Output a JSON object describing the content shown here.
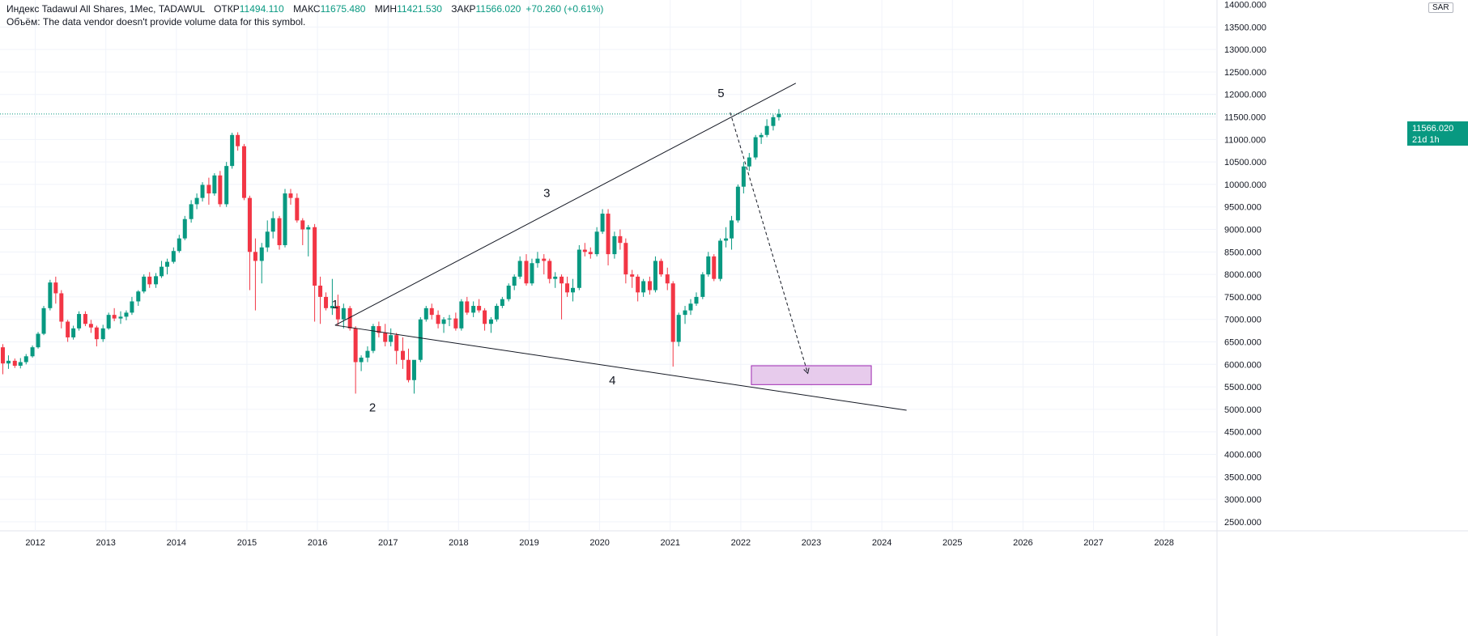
{
  "legend": {
    "symbol": "Индекс Tadawul All Shares, 1Мес, TADAWUL",
    "open_label": "ОТКР",
    "open": "11494.110",
    "high_label": "МАКС",
    "high": "11675.480",
    "low_label": "МИН",
    "low": "11421.530",
    "close_label": "ЗАКР",
    "close": "11566.020",
    "change": "+70.260 (+0.61%)",
    "volume_note": "Объём: The data vendor doesn't provide volume data for this symbol."
  },
  "price_axis": {
    "currency": "SAR",
    "current_price": "11566.020",
    "current_timer": "21d 1h",
    "top_partial_label": "14000.000"
  },
  "colors": {
    "up": "#089981",
    "down": "#f23645",
    "grid": "#f0f3fa",
    "text": "#131722",
    "line": "#131722",
    "target_fill": "#e1bee7",
    "target_border": "#9c27b0"
  },
  "chart_data": {
    "type": "candlestick",
    "title": "Индекс Tadawul All Shares, 1Мес, TADAWUL",
    "xlabel": "",
    "ylabel": "",
    "y_ticks": [
      2500,
      3000,
      3500,
      4000,
      4500,
      5000,
      5500,
      6000,
      6500,
      7000,
      7500,
      8000,
      8500,
      9000,
      9500,
      10000,
      10500,
      11000,
      11500,
      12000,
      12500,
      13000,
      13500
    ],
    "ylim": [
      2300,
      14100
    ],
    "x_ticks": [
      "2012",
      "2013",
      "2014",
      "2015",
      "2016",
      "2017",
      "2018",
      "2019",
      "2020",
      "2021",
      "2022",
      "2023",
      "2024",
      "2025",
      "2026",
      "2027",
      "2028"
    ],
    "x_start": 2011.5,
    "x_end": 2028.75,
    "candles": [
      {
        "t": 2011.54,
        "o": 6380,
        "h": 6450,
        "l": 5780,
        "c": 6020
      },
      {
        "t": 2011.62,
        "o": 6020,
        "h": 6200,
        "l": 5900,
        "c": 6080
      },
      {
        "t": 2011.71,
        "o": 6080,
        "h": 6130,
        "l": 5920,
        "c": 5970
      },
      {
        "t": 2011.79,
        "o": 5970,
        "h": 6140,
        "l": 5910,
        "c": 6050
      },
      {
        "t": 2011.87,
        "o": 6050,
        "h": 6230,
        "l": 6000,
        "c": 6180
      },
      {
        "t": 2011.96,
        "o": 6180,
        "h": 6420,
        "l": 6150,
        "c": 6380
      },
      {
        "t": 2012.04,
        "o": 6380,
        "h": 6720,
        "l": 6350,
        "c": 6680
      },
      {
        "t": 2012.12,
        "o": 6680,
        "h": 7300,
        "l": 6650,
        "c": 7250
      },
      {
        "t": 2012.21,
        "o": 7250,
        "h": 7880,
        "l": 7200,
        "c": 7820
      },
      {
        "t": 2012.29,
        "o": 7820,
        "h": 7950,
        "l": 7350,
        "c": 7580
      },
      {
        "t": 2012.37,
        "o": 7580,
        "h": 7650,
        "l": 6800,
        "c": 6950
      },
      {
        "t": 2012.46,
        "o": 6950,
        "h": 6990,
        "l": 6500,
        "c": 6600
      },
      {
        "t": 2012.54,
        "o": 6600,
        "h": 6860,
        "l": 6550,
        "c": 6800
      },
      {
        "t": 2012.62,
        "o": 6800,
        "h": 7180,
        "l": 6750,
        "c": 7120
      },
      {
        "t": 2012.71,
        "o": 7120,
        "h": 7180,
        "l": 6850,
        "c": 6900
      },
      {
        "t": 2012.79,
        "o": 6900,
        "h": 6990,
        "l": 6700,
        "c": 6820
      },
      {
        "t": 2012.87,
        "o": 6820,
        "h": 6860,
        "l": 6400,
        "c": 6560
      },
      {
        "t": 2012.96,
        "o": 6560,
        "h": 6880,
        "l": 6500,
        "c": 6800
      },
      {
        "t": 2013.04,
        "o": 6800,
        "h": 7150,
        "l": 6770,
        "c": 7100
      },
      {
        "t": 2013.12,
        "o": 7100,
        "h": 7250,
        "l": 6960,
        "c": 7020
      },
      {
        "t": 2013.21,
        "o": 7020,
        "h": 7180,
        "l": 6900,
        "c": 7060
      },
      {
        "t": 2013.29,
        "o": 7060,
        "h": 7200,
        "l": 6980,
        "c": 7150
      },
      {
        "t": 2013.37,
        "o": 7150,
        "h": 7500,
        "l": 7100,
        "c": 7400
      },
      {
        "t": 2013.46,
        "o": 7400,
        "h": 7650,
        "l": 7300,
        "c": 7620
      },
      {
        "t": 2013.54,
        "o": 7620,
        "h": 8000,
        "l": 7580,
        "c": 7950
      },
      {
        "t": 2013.62,
        "o": 7950,
        "h": 8050,
        "l": 7700,
        "c": 7780
      },
      {
        "t": 2013.71,
        "o": 7780,
        "h": 8030,
        "l": 7700,
        "c": 7960
      },
      {
        "t": 2013.79,
        "o": 7960,
        "h": 8300,
        "l": 7920,
        "c": 8170
      },
      {
        "t": 2013.87,
        "o": 8170,
        "h": 8350,
        "l": 8000,
        "c": 8280
      },
      {
        "t": 2013.96,
        "o": 8280,
        "h": 8600,
        "l": 8240,
        "c": 8520
      },
      {
        "t": 2014.04,
        "o": 8520,
        "h": 8880,
        "l": 8480,
        "c": 8800
      },
      {
        "t": 2014.12,
        "o": 8800,
        "h": 9300,
        "l": 8760,
        "c": 9230
      },
      {
        "t": 2014.21,
        "o": 9230,
        "h": 9650,
        "l": 9150,
        "c": 9560
      },
      {
        "t": 2014.29,
        "o": 9560,
        "h": 9800,
        "l": 9450,
        "c": 9700
      },
      {
        "t": 2014.37,
        "o": 9700,
        "h": 10050,
        "l": 9620,
        "c": 9990
      },
      {
        "t": 2014.46,
        "o": 9990,
        "h": 10150,
        "l": 9550,
        "c": 9800
      },
      {
        "t": 2014.54,
        "o": 9800,
        "h": 10250,
        "l": 9750,
        "c": 10200
      },
      {
        "t": 2014.62,
        "o": 10200,
        "h": 10300,
        "l": 9500,
        "c": 9560
      },
      {
        "t": 2014.71,
        "o": 9560,
        "h": 10500,
        "l": 9500,
        "c": 10410
      },
      {
        "t": 2014.79,
        "o": 10410,
        "h": 11150,
        "l": 10350,
        "c": 11100
      },
      {
        "t": 2014.87,
        "o": 11100,
        "h": 11160,
        "l": 10750,
        "c": 10850
      },
      {
        "t": 2014.96,
        "o": 10850,
        "h": 10900,
        "l": 9650,
        "c": 9700
      },
      {
        "t": 2015.04,
        "o": 9700,
        "h": 9750,
        "l": 7650,
        "c": 8500
      },
      {
        "t": 2015.12,
        "o": 8500,
        "h": 8800,
        "l": 7200,
        "c": 8300
      },
      {
        "t": 2015.21,
        "o": 8300,
        "h": 8700,
        "l": 7800,
        "c": 8600
      },
      {
        "t": 2015.29,
        "o": 8600,
        "h": 9200,
        "l": 8500,
        "c": 8950
      },
      {
        "t": 2015.37,
        "o": 8950,
        "h": 9400,
        "l": 8800,
        "c": 9250
      },
      {
        "t": 2015.46,
        "o": 9250,
        "h": 9300,
        "l": 8550,
        "c": 8650
      },
      {
        "t": 2015.54,
        "o": 8650,
        "h": 9900,
        "l": 8600,
        "c": 9800
      },
      {
        "t": 2015.62,
        "o": 9800,
        "h": 9900,
        "l": 9550,
        "c": 9700
      },
      {
        "t": 2015.71,
        "o": 9700,
        "h": 9800,
        "l": 9150,
        "c": 9200
      },
      {
        "t": 2015.79,
        "o": 9200,
        "h": 9250,
        "l": 8650,
        "c": 9000
      },
      {
        "t": 2015.87,
        "o": 9000,
        "h": 9100,
        "l": 8400,
        "c": 9050
      },
      {
        "t": 2015.96,
        "o": 9050,
        "h": 9120,
        "l": 6950,
        "c": 7750
      },
      {
        "t": 2016.04,
        "o": 7750,
        "h": 7950,
        "l": 6900,
        "c": 7500
      },
      {
        "t": 2016.12,
        "o": 7500,
        "h": 7600,
        "l": 7200,
        "c": 7250
      },
      {
        "t": 2016.21,
        "o": 7250,
        "h": 7900,
        "l": 7100,
        "c": 7300
      },
      {
        "t": 2016.29,
        "o": 7300,
        "h": 7550,
        "l": 6850,
        "c": 7000
      },
      {
        "t": 2016.37,
        "o": 7000,
        "h": 7350,
        "l": 6800,
        "c": 7250
      },
      {
        "t": 2016.46,
        "o": 7250,
        "h": 7300,
        "l": 6750,
        "c": 6800
      },
      {
        "t": 2016.54,
        "o": 6800,
        "h": 6850,
        "l": 5350,
        "c": 6050
      },
      {
        "t": 2016.62,
        "o": 6050,
        "h": 6200,
        "l": 5850,
        "c": 6150
      },
      {
        "t": 2016.71,
        "o": 6150,
        "h": 6400,
        "l": 6050,
        "c": 6300
      },
      {
        "t": 2016.79,
        "o": 6300,
        "h": 6900,
        "l": 6250,
        "c": 6850
      },
      {
        "t": 2016.87,
        "o": 6850,
        "h": 6950,
        "l": 6600,
        "c": 6700
      },
      {
        "t": 2016.96,
        "o": 6700,
        "h": 6900,
        "l": 6400,
        "c": 6500
      },
      {
        "t": 2017.04,
        "o": 6500,
        "h": 6800,
        "l": 6400,
        "c": 6650
      },
      {
        "t": 2017.12,
        "o": 6650,
        "h": 6700,
        "l": 6000,
        "c": 6300
      },
      {
        "t": 2017.21,
        "o": 6300,
        "h": 6600,
        "l": 5900,
        "c": 6100
      },
      {
        "t": 2017.29,
        "o": 6100,
        "h": 6350,
        "l": 5600,
        "c": 5650
      },
      {
        "t": 2017.37,
        "o": 5650,
        "h": 6050,
        "l": 5350,
        "c": 6100
      },
      {
        "t": 2017.46,
        "o": 6100,
        "h": 7050,
        "l": 6050,
        "c": 7000
      },
      {
        "t": 2017.54,
        "o": 7000,
        "h": 7300,
        "l": 6950,
        "c": 7250
      },
      {
        "t": 2017.62,
        "o": 7250,
        "h": 7350,
        "l": 7000,
        "c": 7100
      },
      {
        "t": 2017.71,
        "o": 7100,
        "h": 7200,
        "l": 6800,
        "c": 6900
      },
      {
        "t": 2017.79,
        "o": 6900,
        "h": 7050,
        "l": 6700,
        "c": 7000
      },
      {
        "t": 2017.87,
        "o": 7000,
        "h": 7100,
        "l": 6850,
        "c": 7020
      },
      {
        "t": 2017.96,
        "o": 7020,
        "h": 7150,
        "l": 6750,
        "c": 6800
      },
      {
        "t": 2018.04,
        "o": 6800,
        "h": 7450,
        "l": 6750,
        "c": 7400
      },
      {
        "t": 2018.12,
        "o": 7400,
        "h": 7500,
        "l": 7100,
        "c": 7150
      },
      {
        "t": 2018.21,
        "o": 7150,
        "h": 7400,
        "l": 7050,
        "c": 7300
      },
      {
        "t": 2018.29,
        "o": 7300,
        "h": 7450,
        "l": 7150,
        "c": 7200
      },
      {
        "t": 2018.37,
        "o": 7200,
        "h": 7250,
        "l": 6750,
        "c": 6900
      },
      {
        "t": 2018.46,
        "o": 6900,
        "h": 7050,
        "l": 6700,
        "c": 7000
      },
      {
        "t": 2018.54,
        "o": 7000,
        "h": 7350,
        "l": 6950,
        "c": 7300
      },
      {
        "t": 2018.62,
        "o": 7300,
        "h": 7500,
        "l": 7250,
        "c": 7450
      },
      {
        "t": 2018.71,
        "o": 7450,
        "h": 7800,
        "l": 7400,
        "c": 7750
      },
      {
        "t": 2018.79,
        "o": 7750,
        "h": 8000,
        "l": 7650,
        "c": 7950
      },
      {
        "t": 2018.87,
        "o": 7950,
        "h": 8400,
        "l": 7900,
        "c": 8300
      },
      {
        "t": 2018.96,
        "o": 8300,
        "h": 8450,
        "l": 7750,
        "c": 7800
      },
      {
        "t": 2019.04,
        "o": 7800,
        "h": 8350,
        "l": 7750,
        "c": 8250
      },
      {
        "t": 2019.12,
        "o": 8250,
        "h": 8500,
        "l": 8150,
        "c": 8350
      },
      {
        "t": 2019.21,
        "o": 8350,
        "h": 8450,
        "l": 8000,
        "c": 8300
      },
      {
        "t": 2019.29,
        "o": 8300,
        "h": 8350,
        "l": 7800,
        "c": 7900
      },
      {
        "t": 2019.37,
        "o": 7900,
        "h": 8050,
        "l": 7700,
        "c": 7950
      },
      {
        "t": 2019.46,
        "o": 7950,
        "h": 8000,
        "l": 7000,
        "c": 7800
      },
      {
        "t": 2019.54,
        "o": 7800,
        "h": 7950,
        "l": 7500,
        "c": 7600
      },
      {
        "t": 2019.62,
        "o": 7600,
        "h": 7900,
        "l": 7400,
        "c": 7700
      },
      {
        "t": 2019.71,
        "o": 7700,
        "h": 8650,
        "l": 7650,
        "c": 8550
      },
      {
        "t": 2019.79,
        "o": 8550,
        "h": 8700,
        "l": 8400,
        "c": 8500
      },
      {
        "t": 2019.87,
        "o": 8500,
        "h": 8600,
        "l": 8350,
        "c": 8450
      },
      {
        "t": 2019.96,
        "o": 8450,
        "h": 9050,
        "l": 8400,
        "c": 8950
      },
      {
        "t": 2020.04,
        "o": 8950,
        "h": 9450,
        "l": 8900,
        "c": 9350
      },
      {
        "t": 2020.12,
        "o": 9350,
        "h": 9450,
        "l": 8200,
        "c": 8450
      },
      {
        "t": 2020.21,
        "o": 8450,
        "h": 8950,
        "l": 8350,
        "c": 8850
      },
      {
        "t": 2020.29,
        "o": 8850,
        "h": 9000,
        "l": 8550,
        "c": 8700
      },
      {
        "t": 2020.37,
        "o": 8700,
        "h": 8800,
        "l": 7800,
        "c": 8000
      },
      {
        "t": 2020.46,
        "o": 8000,
        "h": 8100,
        "l": 7700,
        "c": 7950
      },
      {
        "t": 2020.54,
        "o": 7950,
        "h": 8000,
        "l": 7400,
        "c": 7600
      },
      {
        "t": 2020.62,
        "o": 7600,
        "h": 7900,
        "l": 7500,
        "c": 7850
      },
      {
        "t": 2020.71,
        "o": 7850,
        "h": 7950,
        "l": 7550,
        "c": 7650
      },
      {
        "t": 2020.79,
        "o": 7650,
        "h": 8400,
        "l": 7600,
        "c": 8300
      },
      {
        "t": 2020.87,
        "o": 8300,
        "h": 8350,
        "l": 7950,
        "c": 8000
      },
      {
        "t": 2020.96,
        "o": 8000,
        "h": 8150,
        "l": 7650,
        "c": 7800
      },
      {
        "t": 2021.04,
        "o": 7800,
        "h": 7850,
        "l": 5950,
        "c": 6500
      },
      {
        "t": 2021.12,
        "o": 6500,
        "h": 7150,
        "l": 6400,
        "c": 7100
      },
      {
        "t": 2021.21,
        "o": 7100,
        "h": 7300,
        "l": 6900,
        "c": 7200
      },
      {
        "t": 2021.29,
        "o": 7200,
        "h": 7450,
        "l": 7100,
        "c": 7350
      },
      {
        "t": 2021.37,
        "o": 7350,
        "h": 7600,
        "l": 7300,
        "c": 7500
      },
      {
        "t": 2021.46,
        "o": 7500,
        "h": 8050,
        "l": 7450,
        "c": 8000
      },
      {
        "t": 2021.54,
        "o": 8000,
        "h": 8500,
        "l": 7950,
        "c": 8400
      },
      {
        "t": 2021.62,
        "o": 8400,
        "h": 8450,
        "l": 7850,
        "c": 7900
      },
      {
        "t": 2021.71,
        "o": 7900,
        "h": 8800,
        "l": 7850,
        "c": 8750
      },
      {
        "t": 2021.79,
        "o": 8750,
        "h": 9050,
        "l": 8600,
        "c": 8800
      },
      {
        "t": 2021.87,
        "o": 8800,
        "h": 9300,
        "l": 8550,
        "c": 9200
      },
      {
        "t": 2021.96,
        "o": 9200,
        "h": 10000,
        "l": 9150,
        "c": 9950
      },
      {
        "t": 2022.04,
        "o": 9950,
        "h": 10500,
        "l": 9800,
        "c": 10400
      },
      {
        "t": 2022.12,
        "o": 10400,
        "h": 10700,
        "l": 10300,
        "c": 10600
      },
      {
        "t": 2022.21,
        "o": 10600,
        "h": 11100,
        "l": 10550,
        "c": 11050
      },
      {
        "t": 2022.29,
        "o": 11050,
        "h": 11150,
        "l": 10900,
        "c": 11100
      },
      {
        "t": 2022.37,
        "o": 11100,
        "h": 11450,
        "l": 11050,
        "c": 11300
      },
      {
        "t": 2022.46,
        "o": 11300,
        "h": 11550,
        "l": 11200,
        "c": 11494
      },
      {
        "t": 2022.54,
        "o": 11494,
        "h": 11675,
        "l": 11421,
        "c": 11566
      }
    ],
    "annotations": [
      {
        "label": "1",
        "t": 2016.25,
        "price": 6920
      },
      {
        "label": "2",
        "t": 2016.78,
        "price": 5350
      },
      {
        "label": "3",
        "t": 2019.25,
        "price": 9400
      },
      {
        "label": "4",
        "t": 2020.18,
        "price": 5950
      },
      {
        "label": "5",
        "t": 2021.72,
        "price": 11620
      }
    ],
    "trendlines": [
      {
        "name": "upper",
        "from": {
          "t": 2016.25,
          "price": 6870
        },
        "to": {
          "t": 2022.78,
          "price": 12250
        }
      },
      {
        "name": "lower",
        "from": {
          "t": 2016.25,
          "price": 6870
        },
        "to": {
          "t": 2024.35,
          "price": 4980
        }
      }
    ],
    "projection": {
      "from": {
        "t": 2021.85,
        "price": 11600
      },
      "to": {
        "t": 2022.95,
        "price": 5800
      }
    },
    "target_zone": {
      "t_start": 2022.15,
      "t_end": 2023.85,
      "price_low": 5550,
      "price_high": 5970
    },
    "current_price": 11566.02
  }
}
